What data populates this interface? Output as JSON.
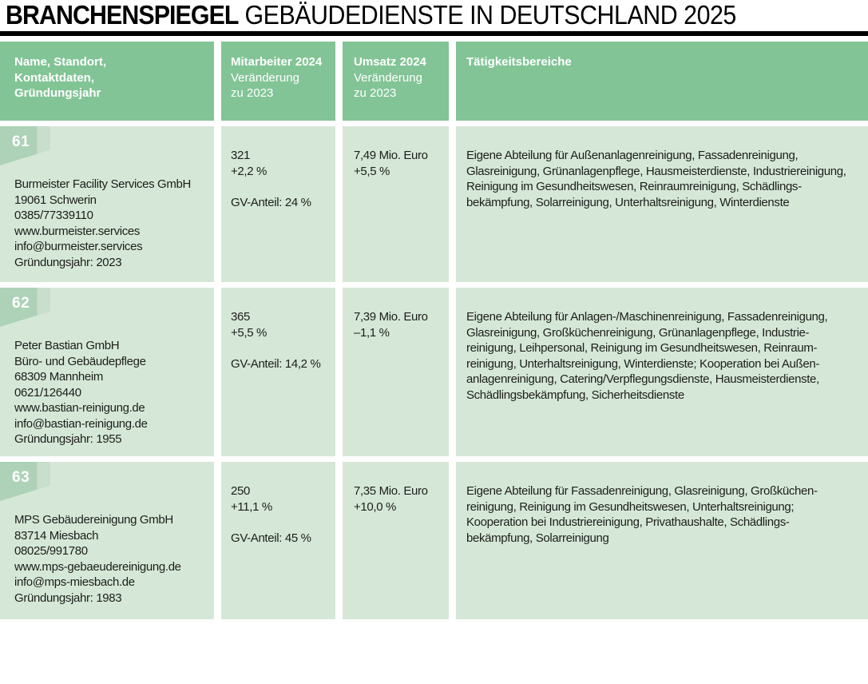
{
  "title": {
    "bold": "BRANCHENSPIEGEL",
    "rest": " GEBÄUDEDIENSTE IN DEUTSCHLAND 2025"
  },
  "colors": {
    "header_green": "#82c496",
    "cell_green": "#d5e8d7",
    "badge_green": "#add2b7",
    "badge_fold_green": "#c8dfcd",
    "rule_black": "#000000",
    "text": "#1d1d1b"
  },
  "header": {
    "name_col": "Name, Standort,\nKontaktdaten,\nGründungsjahr",
    "employees_title": "Mitarbeiter 2024",
    "employees_sub": "Veränderung\nzu 2023",
    "revenue_title": "Umsatz 2024",
    "revenue_sub": "Veränderung\nzu 2023",
    "activities_title": "Tätigkeitsbereiche"
  },
  "rows": [
    {
      "rank": "61",
      "contact": "Burmeister Facility Services GmbH\n19061 Schwerin\n0385/77339110\nwww.burmeister.services\ninfo@burmeister.services\nGründungsjahr: 2023",
      "employees": "321\n+2,2 %",
      "gv": "GV-Anteil: 24 %",
      "revenue": "7,49 Mio. Euro\n+5,5 %",
      "activities": "Eigene Abteilung für Außenanlagenreinigung, Fassadenreinigung,\nGlasreinigung, Grünanlagenpflege, Hausmeisterdienste, Industriereinigung,\nReinigung im Gesundheitswesen, Reinraumreinigung, Schädlings-\nbekämpfung, Solarreinigung, Unterhaltsreinigung, Winterdienste"
    },
    {
      "rank": "62",
      "contact": "Peter Bastian GmbH\nBüro- und Gebäudepflege\n68309 Mannheim\n0621/126440\nwww.bastian-reinigung.de\ninfo@bastian-reinigung.de\nGründungsjahr: 1955",
      "employees": "365\n+5,5 %",
      "gv": "GV-Anteil: 14,2 %",
      "revenue": "7,39 Mio. Euro\n–1,1 %",
      "activities": "Eigene Abteilung für Anlagen-/Maschinenreinigung, Fassadenreinigung,\nGlasreinigung, Großküchenreinigung, Grünanlagenpflege, Industrie-\nreinigung, Leihpersonal, Reinigung im Gesundheitswesen, Reinraum-\nreinigung, Unterhaltsreinigung, Winterdienste; Kooperation bei Außen-\nanlagenreinigung, Catering/Verpflegungsdienste, Hausmeisterdienste,\nSchädlingsbekämpfung, Sicherheitsdienste"
    },
    {
      "rank": "63",
      "contact": "MPS Gebäudereinigung GmbH\n83714 Miesbach\n08025/991780\nwww.mps-gebaeudereinigung.de\ninfo@mps-miesbach.de\nGründungsjahr: 1983",
      "employees": "250\n+11,1 %",
      "gv": "GV-Anteil: 45 %",
      "revenue": "7,35 Mio. Euro\n+10,0 %",
      "activities": "Eigene Abteilung für Fassadenreinigung, Glasreinigung, Großküchen-\nreinigung, Reinigung im Gesundheitswesen, Unterhaltsreinigung;\nKooperation bei Industriereinigung, Privathaushalte, Schädlings-\nbekämpfung, Solarreinigung"
    }
  ]
}
